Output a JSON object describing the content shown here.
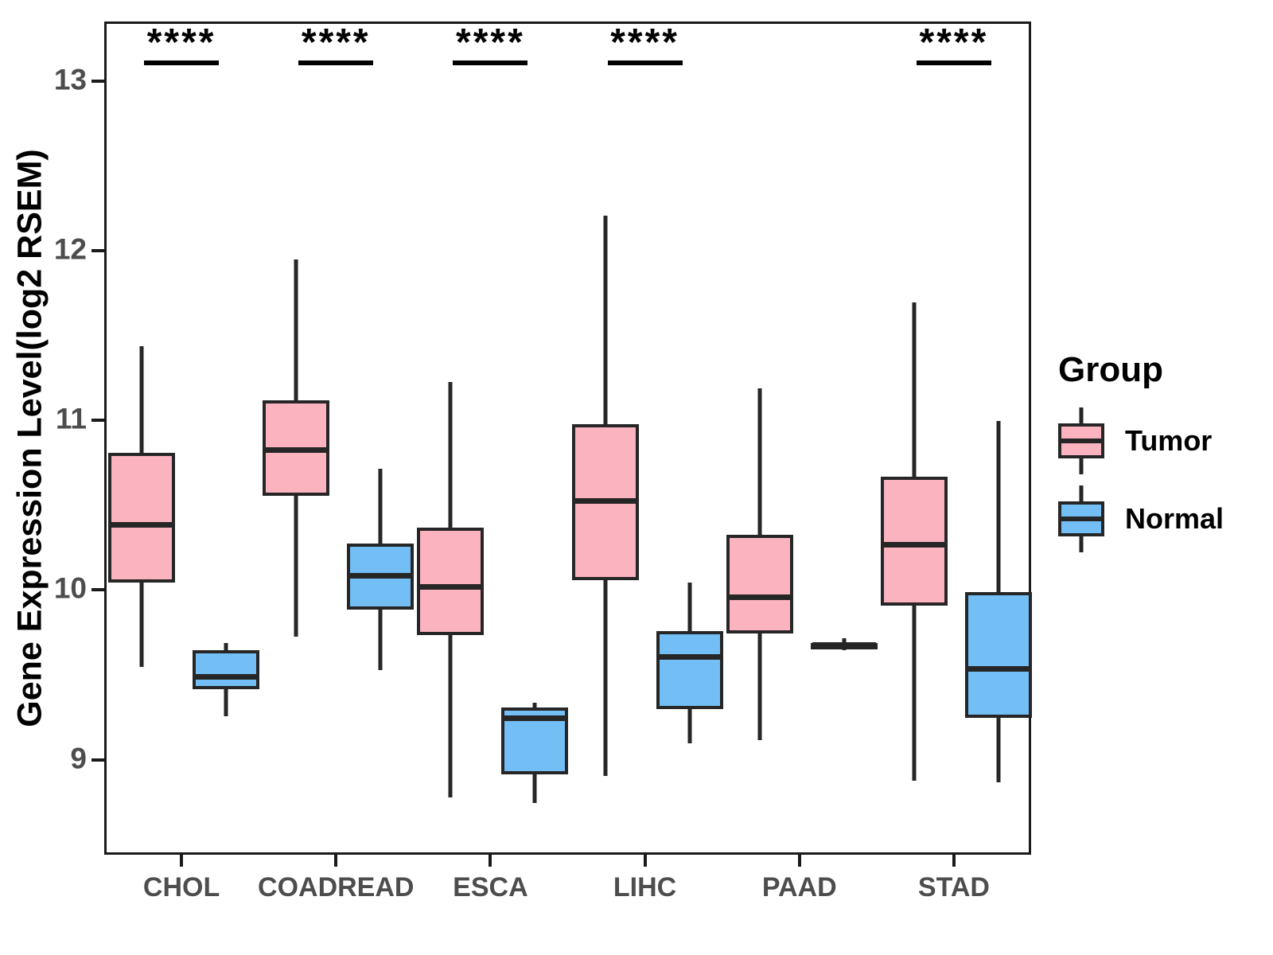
{
  "figure": {
    "background": "#ffffff",
    "legend": {
      "title": "Group",
      "items": [
        {
          "label": "Tumor",
          "color": "#FBB3C0"
        },
        {
          "label": "Normal",
          "color": "#72BEF5"
        }
      ]
    }
  },
  "style": {
    "box_border_color": "#262626",
    "panel_border_color": "#1a1a1a",
    "tick_label_color": "#4d4d4d",
    "significance_color": "#000000"
  },
  "chart_data": {
    "type": "boxplot",
    "title": "",
    "xlabel": "",
    "ylabel": "Gene Expression Level(log2 RSEM)",
    "ylim": [
      8.44,
      13.35
    ],
    "yticks": [
      9,
      10,
      11,
      12,
      13
    ],
    "grid": false,
    "legend_position": "right",
    "categories": [
      "CHOL",
      "COADREAD",
      "ESCA",
      "LIHC",
      "PAAD",
      "STAD"
    ],
    "significance_by_category": [
      "****",
      "****",
      "****",
      "****",
      null,
      "****"
    ],
    "series": [
      {
        "name": "Tumor",
        "color": "#FBB3C0",
        "boxes": [
          {
            "category": "CHOL",
            "min": 9.56,
            "q1": 10.06,
            "median": 10.4,
            "q3": 10.82,
            "max": 11.45
          },
          {
            "category": "COADREAD",
            "min": 9.74,
            "q1": 10.57,
            "median": 10.84,
            "q3": 11.13,
            "max": 11.96
          },
          {
            "category": "ESCA",
            "min": 8.79,
            "q1": 9.75,
            "median": 10.03,
            "q3": 10.38,
            "max": 11.24
          },
          {
            "category": "LIHC",
            "min": 8.92,
            "q1": 10.07,
            "median": 10.54,
            "q3": 10.99,
            "max": 12.22
          },
          {
            "category": "PAAD",
            "min": 9.13,
            "q1": 9.76,
            "median": 9.97,
            "q3": 10.34,
            "max": 11.2
          },
          {
            "category": "STAD",
            "min": 8.89,
            "q1": 9.92,
            "median": 10.28,
            "q3": 10.68,
            "max": 11.71
          }
        ]
      },
      {
        "name": "Normal",
        "color": "#72BEF5",
        "boxes": [
          {
            "category": "CHOL",
            "min": 9.27,
            "q1": 9.43,
            "median": 9.5,
            "q3": 9.66,
            "max": 9.7
          },
          {
            "category": "COADREAD",
            "min": 9.54,
            "q1": 9.9,
            "median": 10.1,
            "q3": 10.29,
            "max": 10.73
          },
          {
            "category": "ESCA",
            "min": 8.76,
            "q1": 8.93,
            "median": 9.26,
            "q3": 9.32,
            "max": 9.35
          },
          {
            "category": "LIHC",
            "min": 9.11,
            "q1": 9.31,
            "median": 9.62,
            "q3": 9.77,
            "max": 10.06
          },
          {
            "category": "PAAD",
            "min": 9.66,
            "q1": 9.67,
            "median": 9.69,
            "q3": 9.7,
            "max": 9.73
          },
          {
            "category": "STAD",
            "min": 8.88,
            "q1": 9.26,
            "median": 9.55,
            "q3": 10.0,
            "max": 11.01
          }
        ]
      }
    ]
  }
}
